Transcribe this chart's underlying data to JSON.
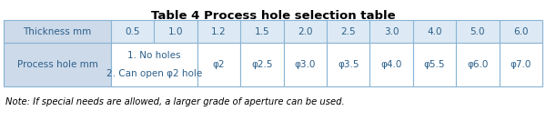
{
  "title": "Table 4 Process hole selection table",
  "title_fontsize": 9.5,
  "note": "Note: If special needs are allowed, a larger grade of aperture can be used.",
  "note_fontsize": 7.2,
  "header_bg": "#cddaea",
  "cell_bg": "#ffffff",
  "border_color": "#8ab4d4",
  "text_color": "#2c5f8a",
  "note_color": "#000000",
  "header_row": [
    "Thickness mm",
    "0.5",
    "1.0",
    "1.2",
    "1.5",
    "2.0",
    "2.5",
    "3.0",
    "4.0",
    "5.0",
    "6.0"
  ],
  "row2_col0": "Process hole mm",
  "row2_top": "1. No holes",
  "row2_bottom": "2. Can open φ2 hole",
  "row2_data": [
    "φ2",
    "φ2.5",
    "φ3.0",
    "φ3.5",
    "φ4.0",
    "φ5.5",
    "φ6.0",
    "φ7.0"
  ],
  "fig_width": 6.0,
  "fig_height": 1.33,
  "dpi": 100
}
